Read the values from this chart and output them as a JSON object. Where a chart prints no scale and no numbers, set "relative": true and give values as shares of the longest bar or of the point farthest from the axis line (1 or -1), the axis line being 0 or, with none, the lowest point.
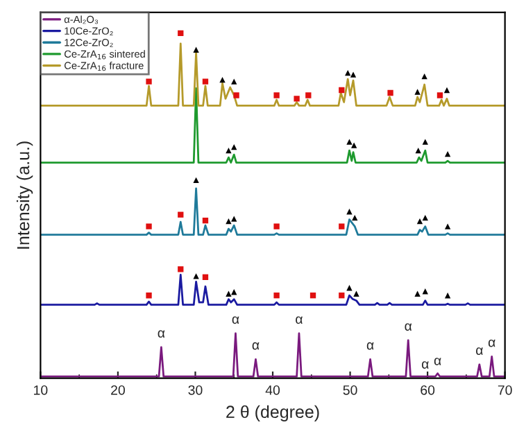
{
  "chart_data": {
    "type": "line",
    "relative": true,
    "xlabel": "2 θ (degree)",
    "ylabel": "Intensity (a.u.)",
    "xlim": [
      10,
      70
    ],
    "xticks": [
      10,
      20,
      30,
      40,
      50,
      60,
      70
    ],
    "legend": "top left",
    "grid": false,
    "series": [
      {
        "name": "α-Al₂O₃",
        "color": "#7a1a7e",
        "x": [
          10,
          25.3,
          25.6,
          25.9,
          34.9,
          35.2,
          35.5,
          37.5,
          37.8,
          38.1,
          43.1,
          43.4,
          43.7,
          52.3,
          52.6,
          52.9,
          57.2,
          57.5,
          57.8,
          61.0,
          61.3,
          61.6,
          66.4,
          66.7,
          67.0,
          68.0,
          68.3,
          68.6,
          70
        ],
        "values": [
          0.005,
          0.005,
          0.09,
          0.005,
          0.005,
          0.13,
          0.005,
          0.005,
          0.055,
          0.005,
          0.005,
          0.13,
          0.005,
          0.005,
          0.055,
          0.005,
          0.005,
          0.11,
          0.005,
          0.005,
          0.014,
          0.005,
          0.005,
          0.04,
          0.005,
          0.005,
          0.063,
          0.005,
          0.005
        ]
      },
      {
        "name": "10Ce-ZrO₂",
        "color": "#1a1aa0",
        "x": [
          10,
          17.0,
          17.3,
          17.6,
          23.7,
          24.0,
          24.3,
          27.8,
          28.1,
          28.4,
          29.8,
          30.1,
          30.5,
          31.0,
          31.3,
          31.7,
          34.0,
          34.3,
          34.6,
          35.0,
          35.4,
          40.2,
          40.5,
          40.8,
          49.5,
          49.9,
          50.3,
          50.8,
          51.2,
          53.2,
          53.5,
          53.8,
          54.8,
          55.1,
          55.4,
          59.4,
          59.7,
          60.0,
          62.3,
          62.6,
          62.9,
          64.9,
          65.2,
          65.5,
          70
        ],
        "values": [
          0.213,
          0.213,
          0.217,
          0.213,
          0.213,
          0.222,
          0.213,
          0.213,
          0.3,
          0.213,
          0.213,
          0.28,
          0.22,
          0.22,
          0.266,
          0.213,
          0.213,
          0.229,
          0.22,
          0.229,
          0.213,
          0.213,
          0.22,
          0.213,
          0.213,
          0.24,
          0.23,
          0.225,
          0.213,
          0.213,
          0.218,
          0.213,
          0.213,
          0.218,
          0.213,
          0.213,
          0.225,
          0.213,
          0.213,
          0.216,
          0.213,
          0.213,
          0.217,
          0.213,
          0.213
        ]
      },
      {
        "name": "12Ce-ZrO₂",
        "color": "#1f7a9a",
        "x": [
          10,
          23.7,
          24.0,
          24.3,
          27.8,
          28.1,
          28.4,
          29.8,
          30.1,
          30.4,
          31.0,
          31.3,
          31.7,
          34.0,
          34.3,
          34.6,
          35.0,
          35.4,
          40.2,
          40.5,
          40.8,
          49.5,
          49.9,
          50.6,
          51.0,
          58.7,
          59.0,
          59.3,
          59.7,
          60.1,
          62.3,
          62.6,
          62.9,
          70
        ],
        "values": [
          0.416,
          0.416,
          0.422,
          0.416,
          0.416,
          0.453,
          0.416,
          0.416,
          0.55,
          0.416,
          0.416,
          0.443,
          0.416,
          0.416,
          0.433,
          0.425,
          0.443,
          0.416,
          0.416,
          0.42,
          0.416,
          0.416,
          0.46,
          0.44,
          0.416,
          0.416,
          0.43,
          0.425,
          0.44,
          0.416,
          0.416,
          0.42,
          0.416,
          0.416
        ]
      },
      {
        "name": "Ce-ZrA$_{16}$ sintered",
        "color": "#1e9a2e",
        "x": [
          10,
          29.8,
          30.1,
          30.4,
          34.0,
          34.3,
          34.6,
          35.0,
          35.3,
          49.6,
          49.9,
          50.2,
          50.4,
          50.7,
          58.6,
          58.9,
          59.2,
          59.7,
          60.0,
          62.3,
          62.6,
          62.9,
          70
        ],
        "values": [
          0.625,
          0.625,
          0.84,
          0.625,
          0.625,
          0.64,
          0.625,
          0.648,
          0.625,
          0.625,
          0.66,
          0.63,
          0.655,
          0.625,
          0.625,
          0.64,
          0.63,
          0.66,
          0.625,
          0.625,
          0.63,
          0.625,
          0.625
        ]
      },
      {
        "name": "Ce-ZrA$_{16}$ fracture",
        "color": "#b59a2a",
        "x": [
          10,
          23.7,
          24.0,
          24.3,
          27.8,
          28.1,
          28.4,
          29.8,
          30.1,
          30.4,
          31.0,
          31.3,
          31.6,
          33.2,
          33.5,
          33.9,
          34.5,
          35.0,
          35.4,
          40.2,
          40.5,
          40.8,
          42.8,
          43.1,
          43.4,
          44.2,
          44.5,
          44.8,
          48.5,
          48.8,
          49.2,
          49.7,
          50.0,
          50.4,
          50.8,
          54.7,
          55.1,
          55.5,
          58.4,
          58.7,
          59.0,
          59.6,
          60.0,
          61.5,
          61.8,
          62.1,
          62.5,
          62.8,
          70
        ],
        "values": [
          0.79,
          0.79,
          0.847,
          0.79,
          0.79,
          0.97,
          0.79,
          0.79,
          0.944,
          0.79,
          0.79,
          0.847,
          0.79,
          0.79,
          0.855,
          0.81,
          0.843,
          0.82,
          0.79,
          0.79,
          0.807,
          0.79,
          0.79,
          0.8,
          0.79,
          0.79,
          0.807,
          0.79,
          0.79,
          0.827,
          0.8,
          0.867,
          0.82,
          0.863,
          0.79,
          0.79,
          0.815,
          0.79,
          0.79,
          0.815,
          0.8,
          0.851,
          0.79,
          0.79,
          0.807,
          0.79,
          0.81,
          0.79,
          0.79
        ]
      },
      {
        "type": "scatter",
        "marker": "square",
        "color": "#e01010",
        "x": [
          24.0,
          28.1,
          31.3,
          35.3,
          40.5,
          43.1,
          44.6,
          48.9,
          55.2,
          61.6,
          24.0,
          28.1,
          31.3,
          40.5,
          48.9,
          24.0,
          28.1,
          31.3,
          40.5,
          45.2,
          48.9
        ],
        "values": [
          0.86,
          1.0,
          0.86,
          0.82,
          0.82,
          0.81,
          0.82,
          0.835,
          0.827,
          0.82,
          0.44,
          0.474,
          0.457,
          0.44,
          0.44,
          0.24,
          0.316,
          0.293,
          0.24,
          0.24,
          0.24
        ]
      },
      {
        "type": "scatter",
        "marker": "triangle",
        "color": "#000000",
        "x": [
          30.1,
          33.5,
          35.0,
          49.7,
          50.4,
          58.7,
          59.6,
          62.5,
          34.3,
          35.0,
          49.9,
          50.5,
          58.8,
          59.7,
          62.6,
          30.1,
          34.3,
          35.0,
          49.9,
          50.6,
          59.0,
          59.7,
          62.6,
          30.1,
          34.3,
          35.0,
          49.9,
          50.8,
          58.7,
          59.7,
          62.6
        ],
        "values": [
          0.952,
          0.865,
          0.86,
          0.885,
          0.88,
          0.83,
          0.875,
          0.835,
          0.66,
          0.67,
          0.685,
          0.675,
          0.66,
          0.685,
          0.65,
          0.574,
          0.455,
          0.462,
          0.483,
          0.465,
          0.455,
          0.465,
          0.44,
          0.296,
          0.245,
          0.25,
          0.262,
          0.245,
          0.245,
          0.252,
          0.24
        ]
      }
    ],
    "annotations": [
      {
        "text": "α",
        "x": 25.6,
        "y": 0.11
      },
      {
        "text": "α",
        "x": 35.2,
        "y": 0.15
      },
      {
        "text": "α",
        "x": 37.8,
        "y": 0.075
      },
      {
        "text": "α",
        "x": 43.4,
        "y": 0.15
      },
      {
        "text": "α",
        "x": 52.6,
        "y": 0.075
      },
      {
        "text": "α",
        "x": 57.5,
        "y": 0.13
      },
      {
        "text": "α",
        "x": 59.7,
        "y": 0.02
      },
      {
        "text": "α",
        "x": 61.3,
        "y": 0.03
      },
      {
        "text": "α",
        "x": 66.7,
        "y": 0.06
      },
      {
        "text": "α",
        "x": 68.3,
        "y": 0.083
      }
    ]
  }
}
